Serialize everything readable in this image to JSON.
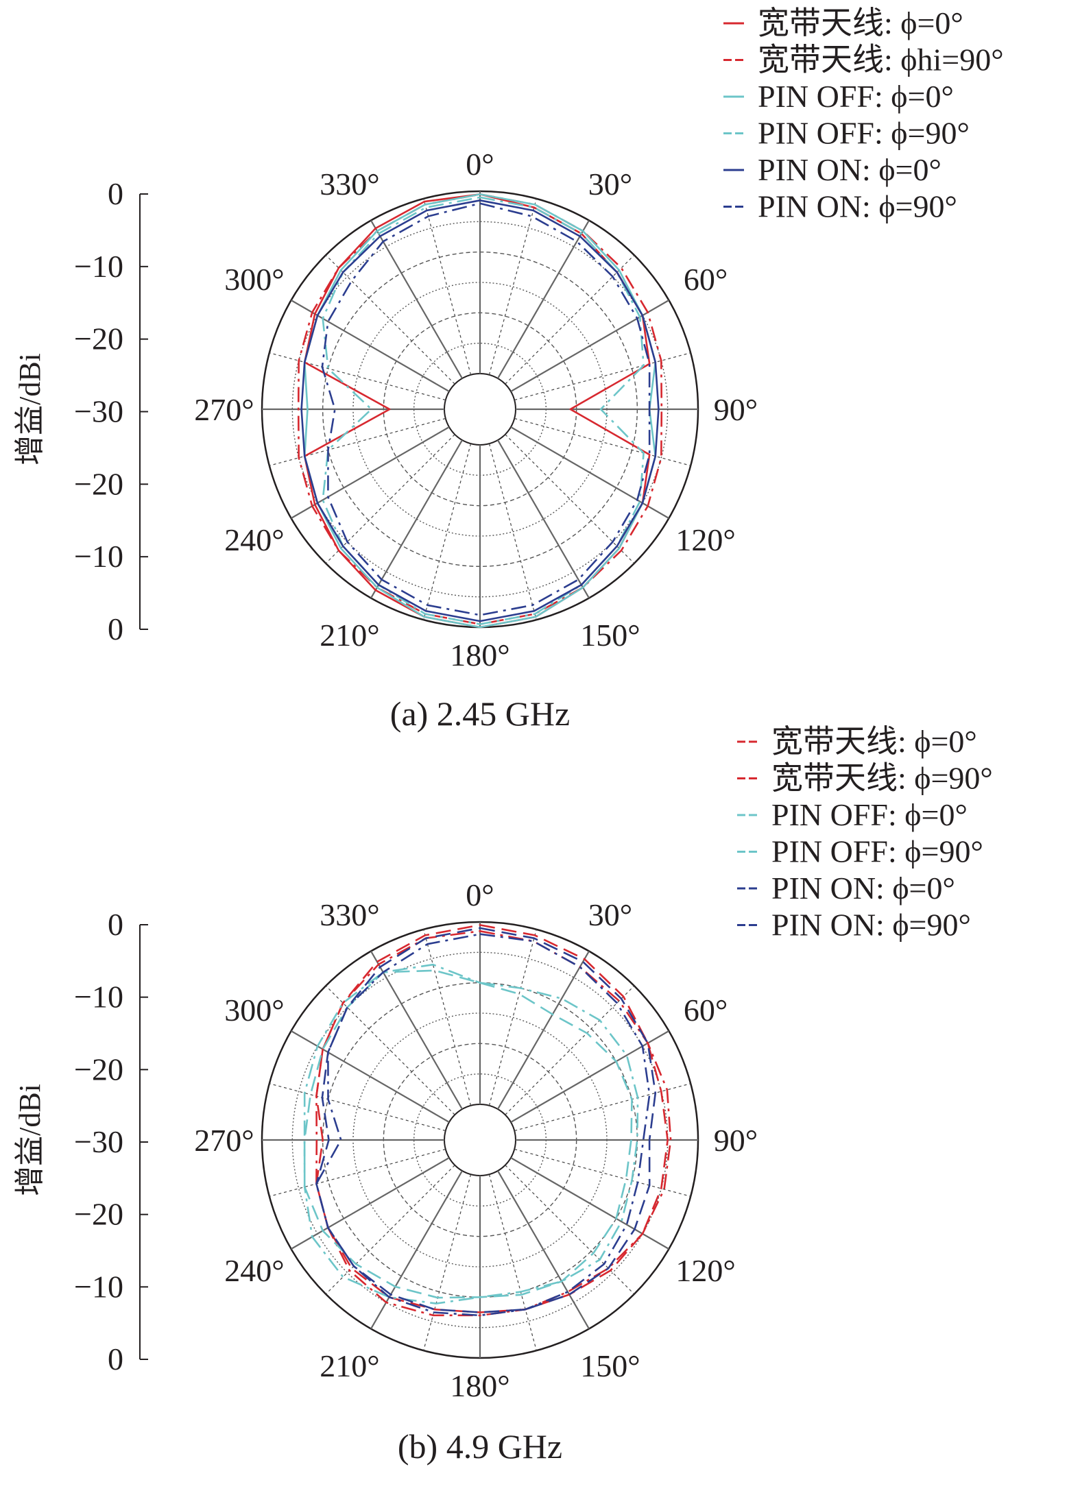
{
  "chart_data": [
    {
      "type": "polar-line",
      "caption": "(a) 2.45 GHz",
      "ylabel": "增益/dBi",
      "r_ticks": [
        "0",
        "−10",
        "−20",
        "−30",
        "−20",
        "−10",
        "0"
      ],
      "r_range": [
        -30,
        0
      ],
      "angle_labels": [
        "0°",
        "30°",
        "60°",
        "90°",
        "120°",
        "150°",
        "180°",
        "210°",
        "240°",
        "270°",
        "300°",
        "330°"
      ],
      "grid": true,
      "legend": "top-right",
      "legend_labels": [
        "宽带天线: ϕ=0°",
        "宽带天线: ϕhi=90°",
        "PIN OFF: ϕ=0°",
        "PIN OFF: ϕ=90°",
        "PIN ON: ϕ=0°",
        "PIN ON: ϕ=90°"
      ],
      "theta": [
        0,
        15,
        30,
        45,
        60,
        75,
        90,
        105,
        120,
        135,
        150,
        165,
        180,
        195,
        210,
        225,
        240,
        255,
        270,
        285,
        300,
        315,
        330,
        345
      ],
      "series": [
        {
          "color": "#d7282f",
          "dash": "solid",
          "values": [
            -0.5,
            -1.5,
            -2.5,
            -4,
            -5,
            -7,
            -21,
            -7,
            -5,
            -3.5,
            -2,
            -0.5,
            0,
            -0.5,
            -1.5,
            -3,
            -4.5,
            -6,
            -21,
            -6,
            -4.5,
            -3,
            -1.5,
            -0.5
          ]
        },
        {
          "color": "#d7282f",
          "dash": "dashdot",
          "values": [
            -0.5,
            -1,
            -2,
            -3,
            -4,
            -5,
            -6,
            -5,
            -4,
            -3,
            -2,
            -1,
            -0.5,
            -1,
            -2,
            -3,
            -4,
            -5,
            -6,
            -5,
            -4,
            -3,
            -2,
            -1
          ]
        },
        {
          "color": "#6cc5c8",
          "dash": "solid",
          "values": [
            -0.5,
            -1,
            -2,
            -3.5,
            -5,
            -6,
            -8,
            -6,
            -5,
            -3.5,
            -2,
            -0.5,
            0,
            -0.5,
            -2,
            -3.5,
            -5,
            -6,
            -7.5,
            -6,
            -5,
            -3.5,
            -2,
            -1
          ]
        },
        {
          "color": "#6cc5c8",
          "dash": "dashdot",
          "values": [
            -1,
            -1.5,
            -2.5,
            -4,
            -5.5,
            -8,
            -16,
            -8,
            -5.5,
            -4,
            -2.5,
            -1,
            -0.5,
            -1,
            -2.5,
            -4,
            -6,
            -10,
            -18,
            -10,
            -6,
            -4,
            -2.5,
            -1.5
          ]
        },
        {
          "color": "#2b3d8f",
          "dash": "solid",
          "values": [
            -1.5,
            -2,
            -3,
            -4,
            -5,
            -6,
            -6.5,
            -6,
            -5,
            -4,
            -2.5,
            -1.5,
            -1,
            -1.5,
            -2.5,
            -4,
            -5,
            -6,
            -6.5,
            -6,
            -5,
            -4,
            -3,
            -2
          ]
        },
        {
          "color": "#2b3d8f",
          "dash": "dashdot",
          "values": [
            -2,
            -3,
            -4,
            -5,
            -6,
            -7,
            -8,
            -7,
            -6,
            -5,
            -3.5,
            -2.5,
            -2,
            -2.5,
            -3.5,
            -5,
            -7,
            -10,
            -12,
            -9,
            -7,
            -6,
            -4,
            -3
          ]
        }
      ]
    },
    {
      "type": "polar-line",
      "caption": "(b) 4.9 GHz",
      "ylabel": "增益/dBi",
      "r_ticks": [
        "0",
        "−10",
        "−20",
        "−30",
        "−20",
        "−10",
        "0"
      ],
      "r_range": [
        -30,
        0
      ],
      "angle_labels": [
        "0°",
        "30°",
        "60°",
        "90°",
        "120°",
        "150°",
        "180°",
        "210°",
        "240°",
        "270°",
        "300°",
        "330°"
      ],
      "grid": true,
      "legend": "top-right",
      "legend_labels": [
        "宽带天线: ϕ=0°",
        "宽带天线: ϕ=90°",
        "PIN OFF: ϕ=0°",
        "PIN OFF: ϕ=90°",
        "PIN ON: ϕ=0°",
        "PIN ON: ϕ=90°"
      ],
      "theta": [
        0,
        15,
        30,
        45,
        60,
        75,
        90,
        105,
        120,
        135,
        150,
        165,
        180,
        195,
        210,
        225,
        240,
        255,
        270,
        285,
        300,
        315,
        330,
        345
      ],
      "series": [
        {
          "color": "#d7282f",
          "dash": "dashdot",
          "values": [
            -1.5,
            -2,
            -3,
            -3.5,
            -4,
            -4,
            -4.5,
            -4.5,
            -5,
            -6,
            -7,
            -7,
            -7,
            -6,
            -5,
            -5.5,
            -7,
            -8,
            -9,
            -8,
            -6,
            -4,
            -2.5,
            -1.5
          ]
        },
        {
          "color": "#d7282f",
          "dash": "dashed",
          "values": [
            -0.5,
            -1,
            -1.5,
            -2.5,
            -4,
            -5,
            -5,
            -5,
            -5,
            -5.5,
            -6.5,
            -7,
            -7.5,
            -7,
            -6,
            -6,
            -7,
            -8,
            -10,
            -8,
            -6,
            -4,
            -2,
            -1
          ]
        },
        {
          "color": "#6cc5c8",
          "dash": "dashdot",
          "values": [
            -10,
            -10,
            -9,
            -8,
            -8,
            -9,
            -10,
            -10,
            -9,
            -8,
            -9,
            -10,
            -10,
            -8,
            -6,
            -4,
            -4,
            -6,
            -7,
            -6,
            -5,
            -4,
            -4,
            -6
          ]
        },
        {
          "color": "#6cc5c8",
          "dash": "dashed",
          "values": [
            -10,
            -11,
            -12,
            -11,
            -10,
            -10,
            -11,
            -11,
            -10,
            -9.5,
            -9,
            -9.5,
            -10,
            -9,
            -8,
            -7,
            -6,
            -6,
            -7,
            -7,
            -6,
            -5,
            -4,
            -7
          ]
        },
        {
          "color": "#2b3d8f",
          "dash": "dashdot",
          "values": [
            -2,
            -2,
            -3,
            -4,
            -5,
            -7,
            -9,
            -9,
            -8,
            -7,
            -7,
            -7,
            -7,
            -6.5,
            -6,
            -6.5,
            -7,
            -8,
            -13,
            -10,
            -7,
            -5,
            -4,
            -2.5
          ]
        },
        {
          "color": "#2b3d8f",
          "dash": "dashed",
          "values": [
            -1,
            -1.5,
            -2,
            -3,
            -4,
            -6,
            -8,
            -7,
            -6.5,
            -6,
            -6.5,
            -7,
            -7.5,
            -7,
            -6.5,
            -6.5,
            -7,
            -8,
            -11,
            -9,
            -7,
            -5,
            -3,
            -1.5
          ]
        }
      ]
    }
  ]
}
